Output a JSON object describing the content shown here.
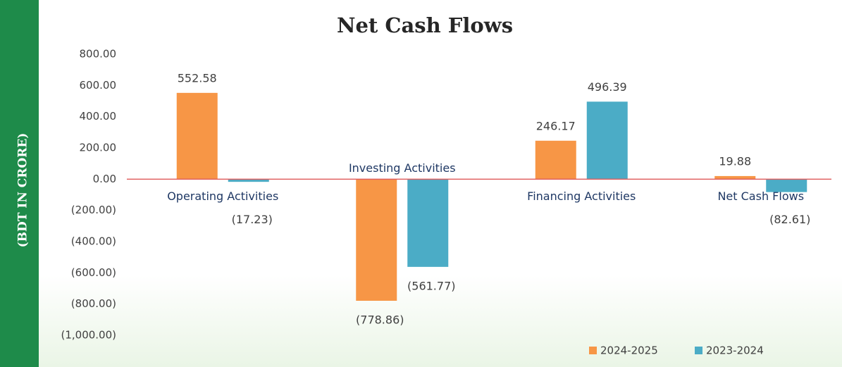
{
  "chart_data": {
    "type": "bar",
    "title": "Net Cash Flows",
    "y_label": "(BDT IN CRORE)",
    "categories": [
      "Operating Activities",
      "Investing Activities",
      "Financing Activities",
      "Net Cash Flows"
    ],
    "series": [
      {
        "name": "2024-2025",
        "color": "#f79646",
        "values": [
          552.58,
          -778.86,
          246.17,
          19.88
        ],
        "value_labels": [
          "552.58",
          "(778.86)",
          "246.17",
          "19.88"
        ]
      },
      {
        "name": "2023-2024",
        "color": "#4bacc6",
        "values": [
          -17.23,
          -561.77,
          496.39,
          -82.61
        ],
        "value_labels": [
          "(17.23)",
          "(561.77)",
          "496.39",
          "(82.61)"
        ]
      }
    ],
    "ylim": [
      -1000,
      800
    ],
    "yticks": [
      {
        "value": 800,
        "label": "800.00"
      },
      {
        "value": 600,
        "label": "600.00"
      },
      {
        "value": 400,
        "label": "400.00"
      },
      {
        "value": 200,
        "label": "200.00"
      },
      {
        "value": 0,
        "label": "0.00"
      },
      {
        "value": -200,
        "label": "(200.00)"
      },
      {
        "value": -400,
        "label": "(400.00)"
      },
      {
        "value": -600,
        "label": "(600.00)"
      },
      {
        "value": -800,
        "label": "(800.00)"
      },
      {
        "value": -1000,
        "label": "(1,000.00)"
      }
    ],
    "grid": false,
    "legend": "bottom-right"
  }
}
